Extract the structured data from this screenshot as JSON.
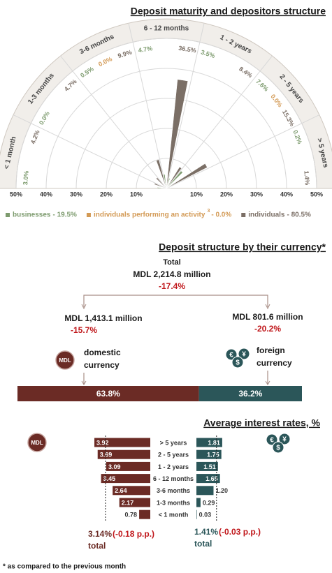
{
  "chart_data": [
    {
      "type": "polar_bar",
      "title": "Deposit maturity and depositors structure",
      "categories": [
        "< 1 month",
        "1-3 months",
        "3-6 months",
        "6 - 12 months",
        "1 - 2 years",
        "2 - 5 years",
        "> 5 years"
      ],
      "series": [
        {
          "name": "businesses",
          "total_label": "- 19.5%",
          "color": "#7d9b6e",
          "values": [
            3.0,
            0.0,
            0.5,
            4.7,
            3.5,
            7.6,
            0.2
          ],
          "value_labels": [
            "3.0%",
            "0.0%",
            "0.5%",
            "4.7%",
            "3.5%",
            "7.6%",
            "0.2%"
          ]
        },
        {
          "name": "individuals performing an activity",
          "note": "3",
          "total_label": "- 0.0%",
          "color": "#d39a55",
          "values": [
            null,
            null,
            0.0,
            null,
            null,
            0.0,
            null
          ],
          "value_labels": [
            null,
            null,
            "0.0%",
            null,
            null,
            "0.0%",
            null
          ]
        },
        {
          "name": "individuals",
          "total_label": "- 80.5%",
          "color": "#7b6f66",
          "values": [
            4.2,
            4.7,
            9.9,
            36.5,
            8.4,
            15.3,
            1.4
          ],
          "value_labels": [
            "4.2%",
            "4.7%",
            "9.9%",
            "36.5%",
            "8.4%",
            "15.3%",
            "1.4%"
          ]
        }
      ],
      "rlim": [
        0,
        50
      ],
      "rticks": [
        {
          "value": 10,
          "label": "10%"
        },
        {
          "value": 20,
          "label": "20%"
        },
        {
          "value": 30,
          "label": "30%"
        },
        {
          "value": 40,
          "label": "40%"
        },
        {
          "value": 50,
          "label": "50%"
        }
      ],
      "grid": true
    },
    {
      "type": "share_bar",
      "title": "Deposit structure by their currency*",
      "total": {
        "heading": "Total",
        "amount": "MDL 2,214.8 million",
        "change": "-17.4%"
      },
      "series": [
        {
          "name_lines": [
            "domestic",
            "currency"
          ],
          "amount": "MDL 1,413.1 million",
          "change": "-15.7%",
          "icon": [
            "MDL"
          ],
          "color": "#6b2b25",
          "value": 63.8,
          "value_label": "63.8%"
        },
        {
          "name_lines": [
            "foreign",
            "currency"
          ],
          "amount": "MDL 801.6 million",
          "change": "-20.2%",
          "icon": [
            "€",
            "¥",
            "$"
          ],
          "color": "#2b5659",
          "value": 36.2,
          "value_label": "36.2%"
        }
      ]
    },
    {
      "type": "diverging_bar",
      "title": "Average interest rates, %",
      "categories": [
        "> 5 years",
        "2 - 5 years",
        "1 - 2 years",
        "6 - 12 months",
        "3-6 months",
        "1-3 months",
        "< 1 month"
      ],
      "series": [
        {
          "icon": [
            "MDL"
          ],
          "color": "#6b2b25",
          "values": [
            3.92,
            3.69,
            3.09,
            3.45,
            2.64,
            2.17,
            0.78
          ],
          "value_labels": [
            "3.92",
            "3.69",
            "3.09",
            "3.45",
            "2.64",
            "2.17",
            "0.78"
          ],
          "average": 3.14,
          "average_label": "3.14%",
          "change": "(-0.18 p.p.)",
          "average_name": "total"
        },
        {
          "icon": [
            "€",
            "¥",
            "$"
          ],
          "color": "#2b5659",
          "values": [
            1.81,
            1.75,
            1.51,
            1.65,
            1.2,
            0.29,
            0.03
          ],
          "value_labels": [
            "1.81",
            "1.75",
            "1.51",
            "1.65",
            "1.20",
            "0.29",
            "0.03"
          ],
          "average": 1.41,
          "average_label": "1.41%",
          "change": "(-0.03 p.p.)",
          "average_name": "total"
        }
      ]
    }
  ],
  "footnote": "* as compared to the previous month"
}
